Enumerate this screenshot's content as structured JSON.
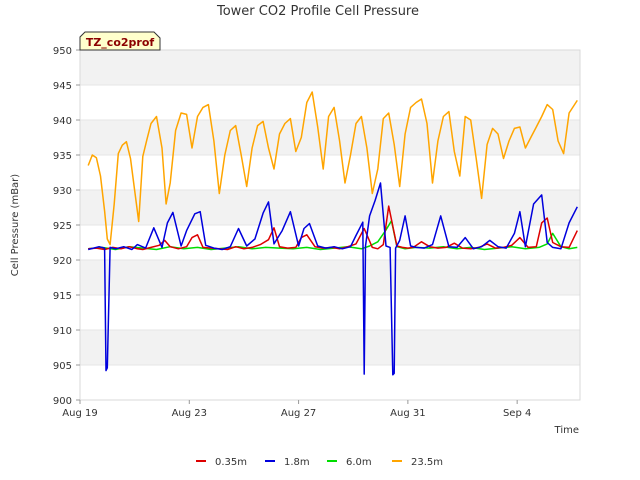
{
  "chart_data": {
    "type": "line",
    "title": "Tower CO2 Profile Cell Pressure",
    "xlabel": "Time",
    "ylabel": "Cell Pressure (mBar)",
    "tag": "TZ_co2prof",
    "ylim": [
      900,
      950
    ],
    "xlim": [
      0,
      18.3
    ],
    "x_ticks": [
      {
        "label": "Aug 19",
        "value": 0
      },
      {
        "label": "Aug 23",
        "value": 4
      },
      {
        "label": "Aug 27",
        "value": 8
      },
      {
        "label": "Aug 31",
        "value": 12
      },
      {
        "label": "Sep 4",
        "value": 16
      }
    ],
    "y_ticks": [
      900,
      905,
      910,
      915,
      920,
      925,
      930,
      935,
      940,
      945,
      950
    ],
    "grid": true,
    "legend_position": "bottom",
    "series": [
      {
        "name": "0.35m",
        "color": "#dd0000",
        "x": [
          0.3,
          0.6,
          0.9,
          1.2,
          1.5,
          1.8,
          2.1,
          2.3,
          2.6,
          2.9,
          3.1,
          3.3,
          3.6,
          3.9,
          4.1,
          4.3,
          4.5,
          4.8,
          5.1,
          5.4,
          5.7,
          6.0,
          6.3,
          6.6,
          6.9,
          7.1,
          7.3,
          7.6,
          7.9,
          8.1,
          8.3,
          8.6,
          8.9,
          9.2,
          9.5,
          9.8,
          10.1,
          10.4,
          10.7,
          10.9,
          11.1,
          11.3,
          11.6,
          11.8,
          12.0,
          12.2,
          12.5,
          12.8,
          13.1,
          13.4,
          13.7,
          14.0,
          14.3,
          14.6,
          14.9,
          15.2,
          15.5,
          15.8,
          16.1,
          16.4,
          16.7,
          16.9,
          17.1,
          17.3,
          17.6,
          17.9,
          18.2
        ],
        "y": [
          921.6,
          921.7,
          921.5,
          921.8,
          921.6,
          921.9,
          921.6,
          921.5,
          921.8,
          922.1,
          922.8,
          921.9,
          921.6,
          921.9,
          923.2,
          923.6,
          921.8,
          921.7,
          921.6,
          921.5,
          921.9,
          921.6,
          921.8,
          922.2,
          922.9,
          924.6,
          921.9,
          921.7,
          921.8,
          923.2,
          923.6,
          921.9,
          921.7,
          921.8,
          921.6,
          921.9,
          922.3,
          924.5,
          921.8,
          921.6,
          922.2,
          927.7,
          922.0,
          921.8,
          921.7,
          921.8,
          922.6,
          921.9,
          921.7,
          921.8,
          922.4,
          921.7,
          921.6,
          921.8,
          922.3,
          921.7,
          921.8,
          922.1,
          923.2,
          921.8,
          921.9,
          925.3,
          926.0,
          922.5,
          921.9,
          921.8,
          924.2
        ]
      },
      {
        "name": "1.8m",
        "color": "#0000dd",
        "x": [
          0.3,
          0.7,
          0.9,
          0.95,
          1.0,
          1.1,
          1.3,
          1.6,
          1.9,
          2.1,
          2.4,
          2.7,
          3.0,
          3.2,
          3.4,
          3.7,
          3.9,
          4.2,
          4.4,
          4.6,
          4.9,
          5.2,
          5.5,
          5.8,
          6.1,
          6.4,
          6.7,
          6.9,
          7.1,
          7.4,
          7.7,
          8.0,
          8.2,
          8.4,
          8.7,
          9.0,
          9.3,
          9.6,
          9.9,
          10.1,
          10.35,
          10.4,
          10.45,
          10.6,
          10.8,
          11.0,
          11.2,
          11.35,
          11.45,
          11.5,
          11.55,
          11.7,
          11.9,
          12.1,
          12.3,
          12.6,
          12.9,
          13.2,
          13.5,
          13.8,
          14.1,
          14.4,
          14.7,
          15.0,
          15.3,
          15.6,
          15.9,
          16.1,
          16.3,
          16.6,
          16.9,
          17.1,
          17.3,
          17.6,
          17.9,
          18.2
        ],
        "y": [
          921.5,
          921.9,
          921.7,
          904.2,
          904.6,
          921.8,
          921.6,
          921.9,
          921.5,
          922.2,
          921.7,
          924.6,
          921.8,
          925.3,
          926.8,
          922.0,
          924.2,
          926.6,
          926.9,
          922.1,
          921.7,
          921.5,
          921.9,
          924.5,
          922.0,
          923.0,
          926.7,
          928.3,
          922.3,
          924.2,
          926.9,
          922.0,
          924.5,
          925.2,
          922.0,
          921.7,
          921.9,
          921.6,
          921.9,
          923.5,
          925.4,
          903.7,
          922.0,
          926.3,
          928.5,
          931.0,
          922.0,
          921.8,
          903.6,
          903.8,
          921.7,
          922.8,
          926.3,
          922.0,
          921.8,
          921.7,
          922.2,
          926.3,
          921.9,
          921.8,
          923.2,
          921.6,
          921.9,
          922.8,
          921.9,
          921.7,
          923.8,
          926.9,
          921.9,
          928.0,
          929.3,
          922.5,
          921.8,
          921.6,
          925.3,
          927.6
        ]
      },
      {
        "name": "6.0m",
        "color": "#00dd00",
        "x": [
          0.3,
          0.8,
          1.3,
          1.8,
          2.3,
          2.8,
          3.3,
          3.8,
          4.3,
          4.8,
          5.3,
          5.8,
          6.3,
          6.8,
          7.3,
          7.8,
          8.3,
          8.8,
          9.3,
          9.8,
          10.3,
          10.6,
          10.9,
          11.2,
          11.4,
          11.6,
          11.9,
          12.3,
          12.8,
          13.3,
          13.8,
          14.3,
          14.8,
          15.3,
          15.8,
          16.3,
          16.8,
          17.1,
          17.3,
          17.6,
          17.9,
          18.2
        ],
        "y": [
          921.6,
          921.8,
          921.5,
          921.9,
          921.7,
          921.5,
          921.9,
          921.6,
          921.8,
          921.5,
          921.7,
          921.9,
          921.6,
          921.8,
          921.7,
          921.6,
          921.8,
          921.5,
          921.7,
          921.9,
          921.6,
          922.0,
          922.6,
          924.3,
          925.6,
          921.9,
          921.6,
          921.8,
          921.7,
          921.9,
          921.6,
          921.8,
          921.5,
          921.7,
          921.9,
          921.6,
          921.8,
          922.3,
          923.8,
          921.9,
          921.6,
          921.8
        ]
      },
      {
        "name": "23.5m",
        "color": "#ffa500",
        "x": [
          0.3,
          0.45,
          0.6,
          0.75,
          0.9,
          1.0,
          1.1,
          1.25,
          1.4,
          1.55,
          1.7,
          1.85,
          2.0,
          2.15,
          2.3,
          2.45,
          2.6,
          2.8,
          3.0,
          3.15,
          3.3,
          3.5,
          3.7,
          3.9,
          4.1,
          4.3,
          4.5,
          4.7,
          4.9,
          5.1,
          5.3,
          5.5,
          5.7,
          5.9,
          6.1,
          6.3,
          6.5,
          6.7,
          6.9,
          7.1,
          7.3,
          7.5,
          7.7,
          7.9,
          8.1,
          8.3,
          8.5,
          8.7,
          8.9,
          9.1,
          9.3,
          9.5,
          9.7,
          9.9,
          10.1,
          10.3,
          10.5,
          10.7,
          10.9,
          11.1,
          11.3,
          11.5,
          11.7,
          11.9,
          12.1,
          12.3,
          12.5,
          12.7,
          12.9,
          13.1,
          13.3,
          13.5,
          13.7,
          13.9,
          14.1,
          14.3,
          14.5,
          14.7,
          14.9,
          15.1,
          15.3,
          15.5,
          15.7,
          15.9,
          16.1,
          16.3,
          16.5,
          16.7,
          16.9,
          17.1,
          17.3,
          17.5,
          17.7,
          17.9,
          18.2
        ],
        "y": [
          933.5,
          935.0,
          934.6,
          932.0,
          927.0,
          923.0,
          922.2,
          928.0,
          935.2,
          936.4,
          936.9,
          934.5,
          930.0,
          925.5,
          934.8,
          937.2,
          939.5,
          940.5,
          936.0,
          928.0,
          931.0,
          938.5,
          941.0,
          940.8,
          936.0,
          940.5,
          941.8,
          942.2,
          937.0,
          929.5,
          935.0,
          938.5,
          939.2,
          935.0,
          930.5,
          936.0,
          939.2,
          939.8,
          936.0,
          933.0,
          938.0,
          939.5,
          940.2,
          935.5,
          937.5,
          942.5,
          944.0,
          939.0,
          933.0,
          940.5,
          941.8,
          937.0,
          931.0,
          935.0,
          939.5,
          940.5,
          936.0,
          929.5,
          933.0,
          940.2,
          941.0,
          936.5,
          930.5,
          938.0,
          941.8,
          942.5,
          943.0,
          939.5,
          931.0,
          937.0,
          940.5,
          941.2,
          935.5,
          932.0,
          940.5,
          940.0,
          934.5,
          928.8,
          936.5,
          938.8,
          938.0,
          934.5,
          937.0,
          938.8,
          939.0,
          936.0,
          937.5,
          939.0,
          940.5,
          942.2,
          941.5,
          937.0,
          935.2,
          941.0,
          942.8
        ]
      }
    ]
  }
}
